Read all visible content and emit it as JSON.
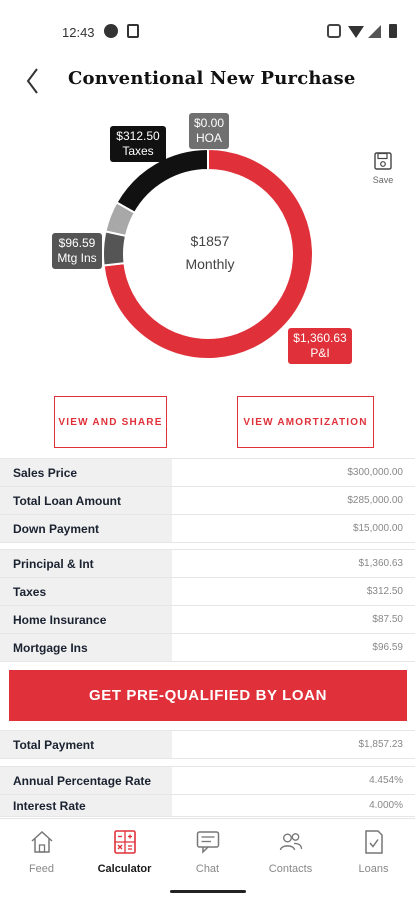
{
  "status_bar": {
    "time": "12:43"
  },
  "header": {
    "title": "Conventional New Purchase"
  },
  "chart_data": {
    "type": "pie",
    "style": "donut",
    "center_amount": "$1857",
    "center_label": "Monthly",
    "slices": [
      {
        "label": "P&I",
        "amount": "$1,360.63",
        "value": 1360.63,
        "color": "#e0313a"
      },
      {
        "label": "Mtg Ins",
        "amount": "$96.59",
        "value": 96.59,
        "color": "#555555"
      },
      {
        "label": "Taxes",
        "amount": "$312.50",
        "value": 312.5,
        "color": "#111111"
      },
      {
        "label": "HOA",
        "amount": "$0.00",
        "value": 0,
        "color": "#707070"
      }
    ],
    "home_insurance_value": 87.5,
    "home_insurance_color": "#a8a8a8"
  },
  "save": {
    "label": "Save"
  },
  "actions": {
    "share_label": "VIEW AND SHARE",
    "amortization_label": "VIEW AMORTIZATION"
  },
  "loan_summary": [
    {
      "label": "Sales Price",
      "value": "$300,000.00"
    },
    {
      "label": "Total Loan Amount",
      "value": "$285,000.00"
    },
    {
      "label": "Down Payment",
      "value": "$15,000.00"
    }
  ],
  "payment_breakdown": [
    {
      "label": "Principal & Int",
      "value": "$1,360.63"
    },
    {
      "label": "Taxes",
      "value": "$312.50"
    },
    {
      "label": "Home Insurance",
      "value": "$87.50"
    },
    {
      "label": "Mortgage Ins",
      "value": "$96.59"
    }
  ],
  "cta": {
    "label": "GET PRE-QUALIFIED BY LOAN"
  },
  "total": [
    {
      "label": "Total Payment",
      "value": "$1,857.23"
    }
  ],
  "rates": [
    {
      "label": "Annual Percentage Rate",
      "value": "4.454%"
    },
    {
      "label": "Interest Rate",
      "value": "4.000%"
    }
  ],
  "nav": {
    "items": [
      {
        "label": "Feed",
        "icon": "home-icon"
      },
      {
        "label": "Calculator",
        "icon": "calculator-icon"
      },
      {
        "label": "Chat",
        "icon": "chat-icon"
      },
      {
        "label": "Contacts",
        "icon": "contacts-icon"
      },
      {
        "label": "Loans",
        "icon": "loans-icon"
      }
    ],
    "active": 1
  },
  "colors": {
    "accent": "#e0313a",
    "label_bg": "#f0f0f0"
  }
}
